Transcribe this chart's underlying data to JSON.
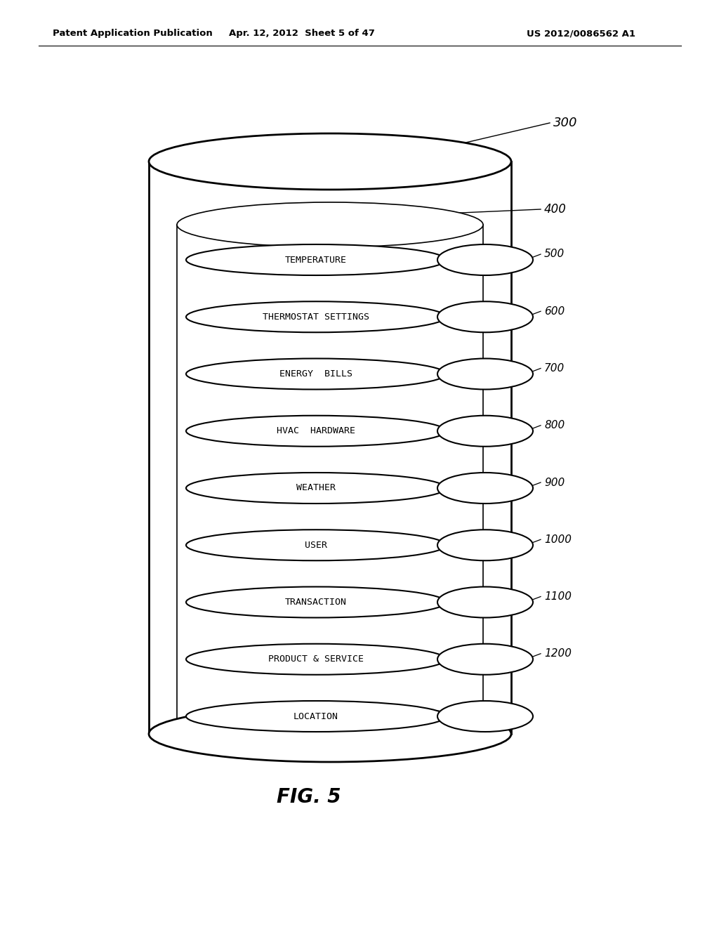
{
  "title_left": "Patent Application Publication",
  "title_mid": "Apr. 12, 2012  Sheet 5 of 47",
  "title_right": "US 2012/0086562 A1",
  "fig_label": "FIG. 5",
  "cylinder_label": "300",
  "layer_400_ref": "400",
  "layers": [
    {
      "label": "TEMPERATURE",
      "ref": "500"
    },
    {
      "label": "THERMOSTAT SETTINGS",
      "ref": "600"
    },
    {
      "label": "ENERGY  BILLS",
      "ref": "700"
    },
    {
      "label": "HVAC  HARDWARE",
      "ref": "800"
    },
    {
      "label": "WEATHER",
      "ref": "900"
    },
    {
      "label": "USER",
      "ref": "1000"
    },
    {
      "label": "TRANSACTION",
      "ref": "1100"
    },
    {
      "label": "PRODUCT & SERVICE",
      "ref": "1200"
    },
    {
      "label": "LOCATION",
      "ref": ""
    }
  ],
  "background_color": "#ffffff",
  "line_color": "#000000",
  "text_color": "#000000"
}
